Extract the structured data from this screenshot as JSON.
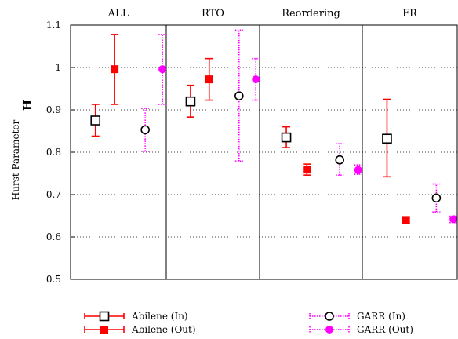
{
  "chart_data": {
    "type": "scatter",
    "title": "",
    "ylabel": "Hurst Parameter",
    "ylabel_symbol": "H",
    "ylim": [
      0.5,
      1.1
    ],
    "yticks": [
      "0.5",
      "0.6",
      "0.7",
      "0.8",
      "0.9",
      "1",
      "1.1"
    ],
    "grid": "dotted horizontal",
    "legend_placement": "bottom",
    "categories": [
      "ALL",
      "RTO",
      "Reordering",
      "FR"
    ],
    "series": [
      {
        "name": "Abilene (In)",
        "marker": "open-square",
        "errorbar_style": "solid",
        "color": "#ff0000",
        "marker_color": "#000000",
        "points": [
          {
            "category": "ALL",
            "y": 0.875,
            "low": 0.838,
            "high": 0.913
          },
          {
            "category": "RTO",
            "y": 0.92,
            "low": 0.883,
            "high": 0.958
          },
          {
            "category": "Reordering",
            "y": 0.835,
            "low": 0.811,
            "high": 0.86
          },
          {
            "category": "FR",
            "y": 0.832,
            "low": 0.742,
            "high": 0.925
          }
        ]
      },
      {
        "name": "Abilene (Out)",
        "marker": "filled-square",
        "errorbar_style": "solid",
        "color": "#ff0000",
        "marker_color": "#ff0000",
        "points": [
          {
            "category": "ALL",
            "y": 0.996,
            "low": 0.913,
            "high": 1.078
          },
          {
            "category": "RTO",
            "y": 0.972,
            "low": 0.923,
            "high": 1.021
          },
          {
            "category": "Reordering",
            "y": 0.759,
            "low": 0.746,
            "high": 0.772
          },
          {
            "category": "FR",
            "y": 0.64,
            "low": 0.633,
            "high": 0.647
          }
        ]
      },
      {
        "name": "GARR (In)",
        "marker": "open-circle",
        "errorbar_style": "dotted",
        "color": "#ff00ff",
        "marker_color": "#000000",
        "points": [
          {
            "category": "ALL",
            "y": 0.853,
            "low": 0.802,
            "high": 0.903
          },
          {
            "category": "RTO",
            "y": 0.933,
            "low": 0.779,
            "high": 1.088
          },
          {
            "category": "Reordering",
            "y": 0.782,
            "low": 0.746,
            "high": 0.82
          },
          {
            "category": "FR",
            "y": 0.692,
            "low": 0.659,
            "high": 0.725
          }
        ]
      },
      {
        "name": "GARR (Out)",
        "marker": "filled-circle",
        "errorbar_style": "dotted",
        "color": "#ff00ff",
        "marker_color": "#ff00ff",
        "points": [
          {
            "category": "ALL",
            "y": 0.996,
            "low": 0.913,
            "high": 1.078
          },
          {
            "category": "RTO",
            "y": 0.972,
            "low": 0.923,
            "high": 1.021
          },
          {
            "category": "Reordering",
            "y": 0.758,
            "low": 0.748,
            "high": 0.77
          },
          {
            "category": "FR",
            "y": 0.642,
            "low": 0.634,
            "high": 0.649
          }
        ]
      }
    ]
  }
}
